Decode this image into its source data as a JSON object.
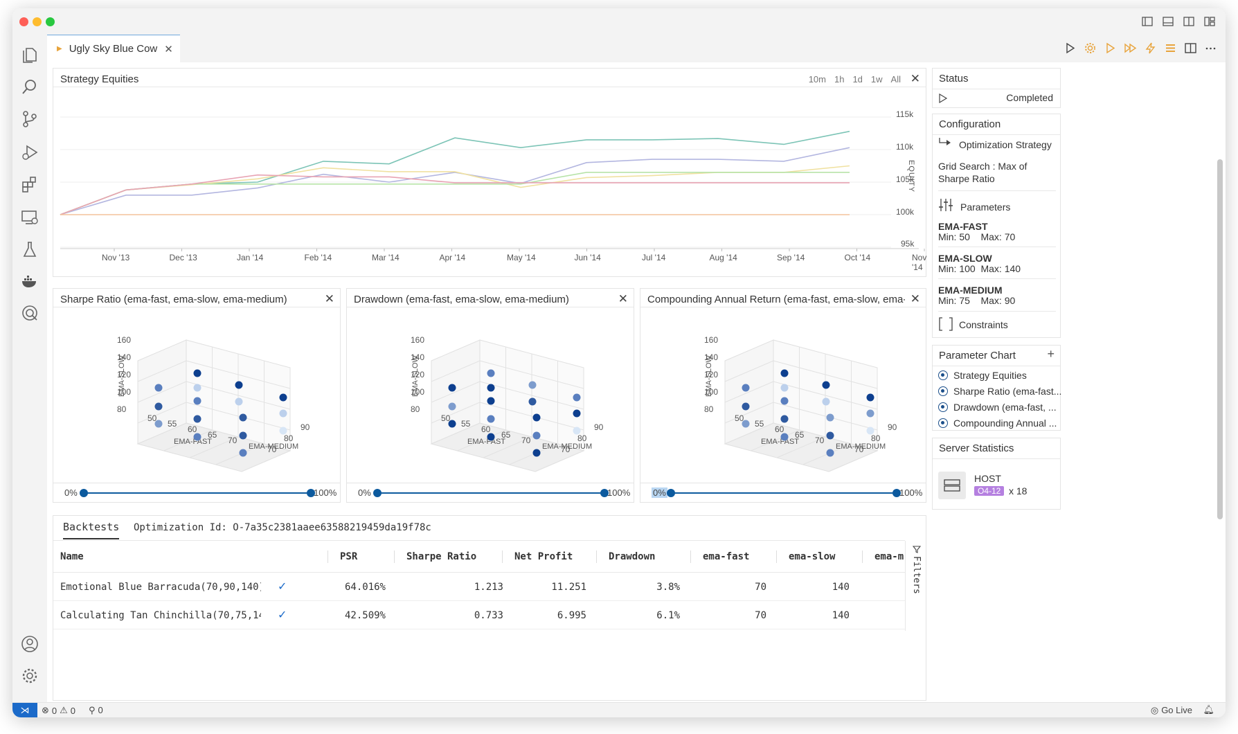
{
  "tab": {
    "title": "Ugly Sky Blue Cow"
  },
  "equity_panel": {
    "title": "Strategy Equities",
    "ranges": [
      "10m",
      "1h",
      "1d",
      "1w",
      "All"
    ],
    "y_label": "EQUITY",
    "y_ticks": [
      "115k",
      "110k",
      "105k",
      "100k",
      "95k"
    ],
    "x_ticks": [
      "Nov '13",
      "Dec '13",
      "Jan '14",
      "Feb '14",
      "Mar '14",
      "Apr '14",
      "May '14",
      "Jun '14",
      "Jul '14",
      "Aug '14",
      "Sep '14",
      "Oct '14",
      "Nov '14"
    ]
  },
  "chart_data": [
    {
      "type": "line",
      "title": "Strategy Equities",
      "ylabel": "EQUITY",
      "ylim": [
        95000,
        115000
      ],
      "x": [
        "Nov '13",
        "Dec '13",
        "Jan '14",
        "Feb '14",
        "Mar '14",
        "Apr '14",
        "May '14",
        "Jun '14",
        "Jul '14",
        "Aug '14",
        "Sep '14",
        "Oct '14",
        "Nov '14"
      ],
      "series": [
        {
          "color": "#7cc4b6",
          "values": [
            100000,
            103800,
            104700,
            105000,
            108200,
            107800,
            111800,
            110300,
            111500,
            111500,
            111700,
            110800,
            112800
          ]
        },
        {
          "color": "#b3b6e0",
          "values": [
            100000,
            103000,
            103000,
            104100,
            106200,
            105000,
            106500,
            104800,
            108000,
            108500,
            108500,
            108200,
            110300
          ]
        },
        {
          "color": "#f0e1a0",
          "values": [
            100000,
            103800,
            104600,
            105500,
            107200,
            106600,
            106600,
            104200,
            105700,
            106000,
            106500,
            106500,
            107500
          ]
        },
        {
          "color": "#b7e3a8",
          "values": [
            100000,
            103800,
            104700,
            104700,
            104700,
            104700,
            104700,
            104700,
            106500,
            106500,
            106500,
            106500,
            106500
          ]
        },
        {
          "color": "#e8a3b3",
          "values": [
            100000,
            103800,
            104700,
            106100,
            105800,
            105800,
            104900,
            104900,
            104900,
            104900,
            104900,
            104900,
            104900
          ]
        },
        {
          "color": "#f3c29b",
          "values": [
            100000,
            100000,
            100000,
            100000,
            100000,
            100000,
            100000,
            100000,
            100000,
            100000,
            100000,
            100000,
            100000
          ]
        }
      ]
    },
    {
      "type": "scatter",
      "title": "Sharpe Ratio (ema-fast, ema-slow, ema-medium)",
      "axes": {
        "x": "EMA-FAST",
        "y": "EMA-SLOW",
        "z": "EMA-MEDIUM"
      },
      "ranges": {
        "x": [
          50,
          70
        ],
        "y": [
          80,
          160
        ],
        "z": [
          70,
          90
        ]
      }
    },
    {
      "type": "scatter",
      "title": "Drawdown (ema-fast, ema-slow, ema-medium)",
      "axes": {
        "x": "EMA-FAST",
        "y": "EMA-SLOW",
        "z": "EMA-MEDIUM"
      },
      "ranges": {
        "x": [
          50,
          70
        ],
        "y": [
          80,
          160
        ],
        "z": [
          70,
          90
        ]
      }
    },
    {
      "type": "scatter",
      "title": "Compounding Annual Return (ema-fast, ema-slow, ema-medi...",
      "axes": {
        "x": "EMA-FAST",
        "y": "EMA-SLOW",
        "z": "EMA-MEDIUM"
      },
      "ranges": {
        "x": [
          50,
          70
        ],
        "y": [
          80,
          160
        ],
        "z": [
          70,
          90
        ]
      }
    }
  ],
  "scatter_panels": [
    {
      "title": "Sharpe Ratio (ema-fast, ema-slow, ema-medium)",
      "min_label": "0%",
      "max_label": "100%"
    },
    {
      "title": "Drawdown (ema-fast, ema-slow, ema-medium)",
      "min_label": "0%",
      "max_label": "100%"
    },
    {
      "title": "Compounding Annual Return (ema-fast, ema-slow, ema-medi...",
      "min_label": "0%",
      "max_label": "100%"
    }
  ],
  "scatter_axes": {
    "y_ticks": [
      "160",
      "140",
      "120",
      "100",
      "80"
    ],
    "x_ticks": [
      "50",
      "55",
      "60",
      "65",
      "70"
    ],
    "z_ticks": [
      "90",
      "80",
      "70"
    ],
    "x_label": "EMA-FAST",
    "y_label": "EMA-SLOW",
    "z_label": "EMA-MEDIUM"
  },
  "backtests": {
    "tab_label": "Backtests",
    "optimization_id": "Optimization Id: O-7a35c2381aaee63588219459da19f78c",
    "columns": [
      "Name",
      "PSR",
      "Sharpe Ratio",
      "Net Profit",
      "Drawdown",
      "ema-fast",
      "ema-slow",
      "ema-m"
    ],
    "rows": [
      {
        "name": "Emotional Blue Barracuda(70,90,140)",
        "psr": "64.016%",
        "sharpe": "1.213",
        "net_profit": "11.251",
        "drawdown": "3.8%",
        "ema_fast": "70",
        "ema_slow": "140"
      },
      {
        "name": "Calculating Tan Chinchilla(70,75,14…",
        "psr": "42.509%",
        "sharpe": "0.733",
        "net_profit": "6.995",
        "drawdown": "6.1%",
        "ema_fast": "70",
        "ema_slow": "140"
      }
    ],
    "filters_label": "Filters"
  },
  "status": {
    "title": "Status",
    "value": "Completed"
  },
  "configuration": {
    "title": "Configuration",
    "strategy_label": "Optimization Strategy",
    "strategy_value": "Grid Search : Max of Sharpe Ratio",
    "parameters_label": "Parameters",
    "parameters": [
      {
        "name": "EMA-FAST",
        "range": "Min: 50    Max: 70"
      },
      {
        "name": "EMA-SLOW",
        "range": "Min: 100  Max: 140"
      },
      {
        "name": "EMA-MEDIUM",
        "range": "Min: 75    Max: 90"
      }
    ],
    "constraints_label": "Constraints"
  },
  "parameter_chart": {
    "title": "Parameter Chart",
    "items": [
      "Strategy Equities",
      "Sharpe Ratio (ema-fast...",
      "Drawdown (ema-fast, ...",
      "Compounding Annual ..."
    ]
  },
  "server_statistics": {
    "title": "Server Statistics",
    "host_label": "HOST",
    "badge": "O4-12",
    "multiplier": "x 18"
  },
  "statusbar": {
    "errors": "0",
    "warnings": "0",
    "ports": "0",
    "go_live": "Go Live"
  }
}
